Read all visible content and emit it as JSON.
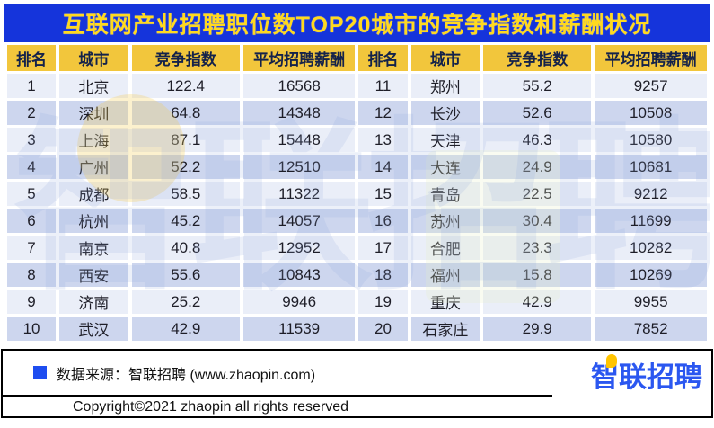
{
  "title": "互联网产业招聘职位数TOP20城市的竞争指数和薪酬状况",
  "chart_data": {
    "type": "table",
    "title": "互联网产业招聘职位数TOP20城市的竞争指数和薪酬状况",
    "columns": [
      "排名",
      "城市",
      "竞争指数",
      "平均招聘薪酬"
    ],
    "layout": "split two halves: ranks 1-10 in left columns, ranks 11-20 in right columns",
    "rows": [
      [
        "1",
        "北京",
        "122.4",
        "16568"
      ],
      [
        "2",
        "深圳",
        "64.8",
        "14348"
      ],
      [
        "3",
        "上海",
        "87.1",
        "15448"
      ],
      [
        "4",
        "广州",
        "52.2",
        "12510"
      ],
      [
        "5",
        "成都",
        "58.5",
        "11322"
      ],
      [
        "6",
        "杭州",
        "45.2",
        "14057"
      ],
      [
        "7",
        "南京",
        "40.8",
        "12952"
      ],
      [
        "8",
        "西安",
        "55.6",
        "10843"
      ],
      [
        "9",
        "济南",
        "25.2",
        "9946"
      ],
      [
        "10",
        "武汉",
        "42.9",
        "11539"
      ],
      [
        "11",
        "郑州",
        "55.2",
        "9257"
      ],
      [
        "12",
        "长沙",
        "52.6",
        "10508"
      ],
      [
        "13",
        "天津",
        "46.3",
        "10580"
      ],
      [
        "14",
        "大连",
        "24.9",
        "10681"
      ],
      [
        "15",
        "青岛",
        "22.5",
        "9212"
      ],
      [
        "16",
        "苏州",
        "30.4",
        "11699"
      ],
      [
        "17",
        "合肥",
        "23.3",
        "10282"
      ],
      [
        "18",
        "福州",
        "15.8",
        "10269"
      ],
      [
        "19",
        "重庆",
        "42.9",
        "9955"
      ],
      [
        "20",
        "石家庄",
        "29.9",
        "7852"
      ]
    ]
  },
  "watermark": {
    "text": "智联招聘"
  },
  "footer": {
    "source": "数据来源：智联招聘 (www.zhaopin.com)",
    "copyright": "Copyright©2021 zhaopin all rights reserved",
    "logo_text": "智联招聘"
  },
  "colors": {
    "banner-blue": "#1534DB",
    "title-yellow": "#FFD91F",
    "header-yellow": "#F2C63C",
    "header-text": "#14224A",
    "row-light": "#EAEEF8",
    "row-dark": "#CDD6EE",
    "cell-text": "#1E1E28",
    "source-square-blue": "#1E4DF0",
    "logo-blue": "#2B57F0",
    "logo-pin-yellow": "#FFC400"
  }
}
